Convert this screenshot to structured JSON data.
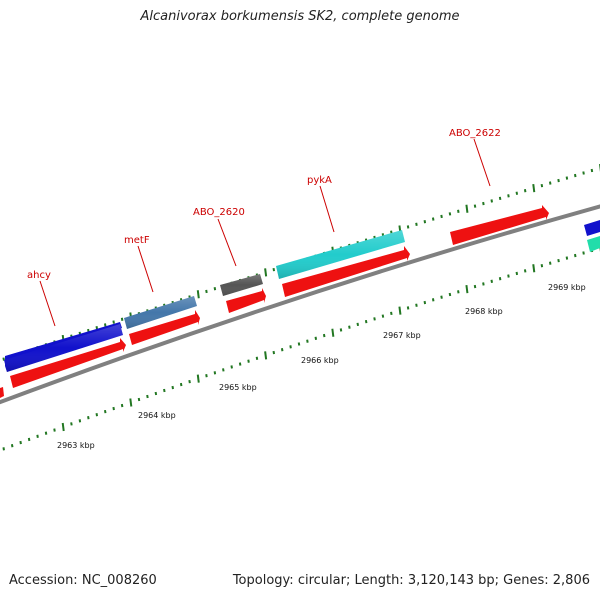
{
  "title": "Alcanivorax borkumensis SK2, complete genome",
  "footer": {
    "accession_label": "Accession:",
    "accession": "NC_008260",
    "topology_label": "Topology:",
    "topology": "circular",
    "length_label": "Length:",
    "length": "3,120,143 bp",
    "genes_label": "Genes:",
    "genes": "2,806"
  },
  "gene_labels": [
    "ahcy",
    "metF",
    "ABO_2620",
    "pykA",
    "ABO_2622"
  ],
  "kbp_labels": [
    "2963 kbp",
    "2964 kbp",
    "2965 kbp",
    "2966 kbp",
    "2967 kbp",
    "2968 kbp",
    "2969 kbp"
  ],
  "colors": {
    "backbone": "#808080",
    "cds": "#ee1111",
    "gene_ahcy": "#1111cc",
    "gene_metF": "#4477aa",
    "gene_ABO_2620": "#555555",
    "gene_pykA": "#22cccc",
    "gene_extra": "#22ddaa",
    "ticks": "#227722",
    "label": "#cc0000"
  }
}
